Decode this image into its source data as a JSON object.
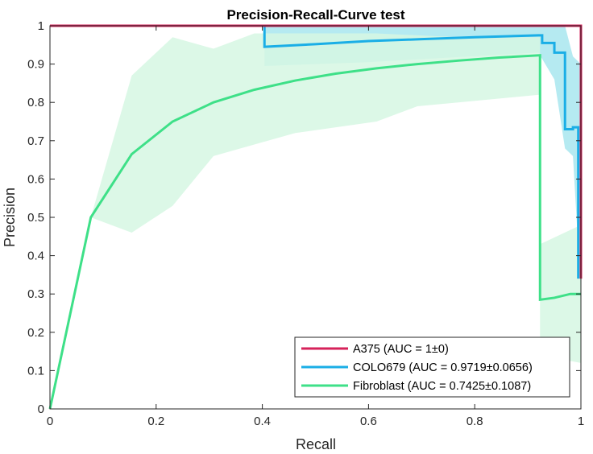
{
  "chart_data": {
    "type": "line",
    "title": "Precision-Recall-Curve test",
    "xlabel": "Recall",
    "ylabel": "Precision",
    "xlim": [
      0,
      1
    ],
    "ylim": [
      0,
      1
    ],
    "xticks": [
      0,
      0.2,
      0.4,
      0.6,
      0.8,
      1
    ],
    "yticks": [
      0,
      0.1,
      0.2,
      0.3,
      0.4,
      0.5,
      0.6,
      0.7,
      0.8,
      0.9,
      1
    ],
    "xtick_labels": [
      "0",
      "0.2",
      "0.4",
      "0.6",
      "0.8",
      "1"
    ],
    "ytick_labels": [
      "0",
      "0.1",
      "0.2",
      "0.3",
      "0.4",
      "0.5",
      "0.6",
      "0.7",
      "0.8",
      "0.9",
      "1"
    ],
    "grid": false,
    "legend_position": "bottom-right",
    "series": [
      {
        "name": "A375 (AUC = 1±0)",
        "color": "#d6225a",
        "band_color": "#f4b8c9",
        "points": [
          [
            0,
            1
          ],
          [
            0.02,
            1
          ],
          [
            0.1,
            1
          ],
          [
            0.4,
            1
          ],
          [
            0.7,
            1
          ],
          [
            0.95,
            1
          ],
          [
            0.985,
            1
          ],
          [
            1,
            1
          ],
          [
            1,
            0.34
          ]
        ],
        "band_upper": [],
        "band_lower": []
      },
      {
        "name": "COLO679 (AUC = 0.9719±0.0656)",
        "color": "#1aaee6",
        "band_color": "#a8e6ee",
        "points": [
          [
            0.02,
            1
          ],
          [
            0.404,
            1
          ],
          [
            0.404,
            0.945
          ],
          [
            0.5,
            0.952
          ],
          [
            0.6,
            0.96
          ],
          [
            0.7,
            0.965
          ],
          [
            0.8,
            0.97
          ],
          [
            0.92,
            0.975
          ],
          [
            0.927,
            0.975
          ],
          [
            0.927,
            0.955
          ],
          [
            0.95,
            0.955
          ],
          [
            0.95,
            0.93
          ],
          [
            0.97,
            0.93
          ],
          [
            0.97,
            0.73
          ],
          [
            0.985,
            0.73
          ],
          [
            0.985,
            0.735
          ],
          [
            0.995,
            0.735
          ],
          [
            0.995,
            0.34
          ]
        ],
        "band_upper": [
          [
            0.404,
            1
          ],
          [
            0.92,
            1
          ],
          [
            0.95,
            1
          ],
          [
            0.97,
            1
          ],
          [
            0.985,
            0.92
          ],
          [
            1,
            0.9
          ]
        ],
        "band_lower": [
          [
            0.404,
            0.895
          ],
          [
            0.6,
            0.905
          ],
          [
            0.92,
            0.93
          ],
          [
            0.95,
            0.86
          ],
          [
            0.97,
            0.68
          ],
          [
            0.985,
            0.66
          ],
          [
            1,
            0.3
          ]
        ]
      },
      {
        "name": "Fibroblast (AUC = 0.7425±0.1087)",
        "color": "#3ee088",
        "band_color": "#d6f7e3",
        "points": [
          [
            0,
            0
          ],
          [
            0.077,
            0.5
          ],
          [
            0.154,
            0.665
          ],
          [
            0.231,
            0.75
          ],
          [
            0.308,
            0.8
          ],
          [
            0.385,
            0.833
          ],
          [
            0.462,
            0.857
          ],
          [
            0.538,
            0.875
          ],
          [
            0.615,
            0.889
          ],
          [
            0.692,
            0.9
          ],
          [
            0.769,
            0.909
          ],
          [
            0.846,
            0.917
          ],
          [
            0.923,
            0.923
          ],
          [
            0.923,
            0.285
          ],
          [
            0.95,
            0.29
          ],
          [
            0.98,
            0.3
          ],
          [
            1,
            0.3
          ]
        ],
        "band_upper": [
          [
            0,
            0
          ],
          [
            0.077,
            0.5
          ],
          [
            0.154,
            0.87
          ],
          [
            0.231,
            0.97
          ],
          [
            0.308,
            0.94
          ],
          [
            0.385,
            0.98
          ],
          [
            0.462,
            0.98
          ],
          [
            0.615,
            0.98
          ],
          [
            0.769,
            0.97
          ],
          [
            0.923,
            0.97
          ],
          [
            0.923,
            0.43
          ],
          [
            1,
            0.48
          ]
        ],
        "band_lower": [
          [
            0,
            0
          ],
          [
            0.077,
            0.5
          ],
          [
            0.154,
            0.46
          ],
          [
            0.231,
            0.53
          ],
          [
            0.308,
            0.66
          ],
          [
            0.385,
            0.69
          ],
          [
            0.462,
            0.72
          ],
          [
            0.615,
            0.75
          ],
          [
            0.692,
            0.79
          ],
          [
            0.769,
            0.8
          ],
          [
            0.923,
            0.82
          ],
          [
            0.923,
            0.14
          ],
          [
            1,
            0.12
          ]
        ]
      }
    ]
  }
}
